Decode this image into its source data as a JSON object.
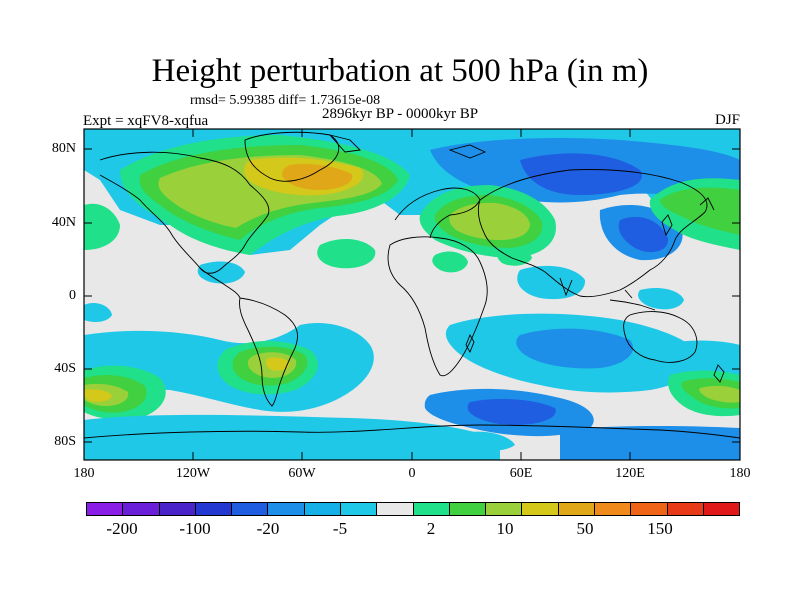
{
  "title": "Height perturbation at 500 hPa (in m)",
  "stats_line": "rmsd= 5.99385 diff= 1.73615e-08",
  "period": "2896kyr BP - 0000kyr BP",
  "experiment": "Expt = xqFV8-xqfua",
  "season": "DJF",
  "lat_ticks": [
    "80N",
    "40N",
    "0",
    "40S",
    "80S"
  ],
  "lon_ticks": [
    "180",
    "120W",
    "60W",
    "0",
    "60E",
    "120E",
    "180"
  ],
  "colorbar": {
    "colors": [
      "#8a1ee6",
      "#6a20d8",
      "#4a24c8",
      "#2238d0",
      "#1f5ee0",
      "#1e8fe8",
      "#15b0e8",
      "#20c8e8",
      "#e8e8e8",
      "#20e08a",
      "#40d040",
      "#9ad03a",
      "#d4c81a",
      "#e0a818",
      "#f08a1a",
      "#f06418",
      "#e83a18",
      "#e01818"
    ],
    "labels": [
      "-200",
      "-100",
      "-20",
      "-5",
      "2",
      "10",
      "50",
      "150"
    ]
  }
}
